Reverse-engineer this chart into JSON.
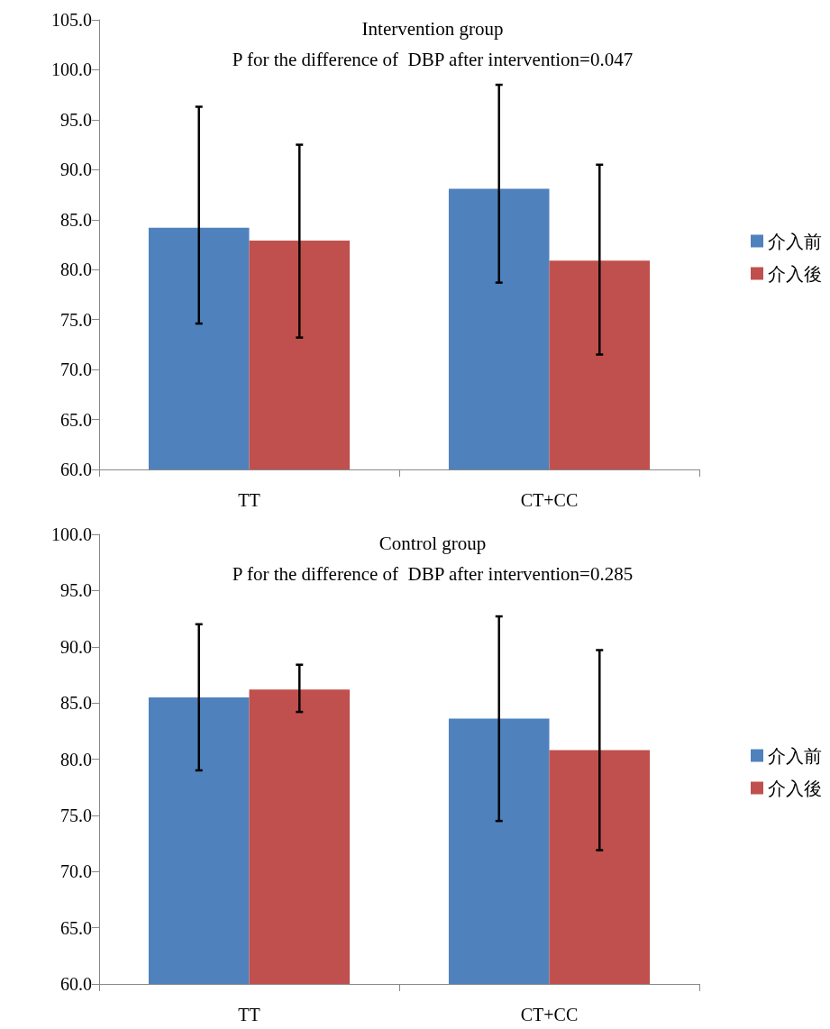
{
  "chart_data": [
    {
      "type": "bar",
      "title": "Intervention group",
      "subtitle": "P for the difference of  DBP after intervention=0.047",
      "categories": [
        "TT",
        "CT+CC"
      ],
      "series": [
        {
          "name": "介入前",
          "color": "#4f81bd",
          "values": [
            84.2,
            88.1
          ],
          "errors": [
            [
              74.6,
              96.3
            ],
            [
              78.7,
              98.5
            ]
          ]
        },
        {
          "name": "介入後",
          "color": "#c0504d",
          "values": [
            82.9,
            80.9
          ],
          "errors": [
            [
              73.2,
              92.5
            ],
            [
              71.5,
              90.5
            ]
          ]
        }
      ],
      "ylim": [
        60,
        105
      ],
      "yticks": [
        {
          "value": 60,
          "label": "60.0"
        },
        {
          "value": 65,
          "label": "65.0"
        },
        {
          "value": 70,
          "label": "70.0"
        },
        {
          "value": 75,
          "label": "75.0"
        },
        {
          "value": 80,
          "label": "80.0"
        },
        {
          "value": 85,
          "label": "85.0"
        },
        {
          "value": 90,
          "label": "90.0"
        },
        {
          "value": 95,
          "label": "95.0"
        },
        {
          "value": 100,
          "label": "100.0"
        },
        {
          "value": 105,
          "label": "105.0"
        }
      ],
      "grid": false,
      "legend": "right"
    },
    {
      "type": "bar",
      "title": "Control group",
      "subtitle": "P for the difference of  DBP after intervention=0.285",
      "categories": [
        "TT",
        "CT+CC"
      ],
      "series": [
        {
          "name": "介入前",
          "color": "#4f81bd",
          "values": [
            85.5,
            83.6
          ],
          "errors": [
            [
              79.0,
              92.0
            ],
            [
              74.5,
              92.7
            ]
          ]
        },
        {
          "name": "介入後",
          "color": "#c0504d",
          "values": [
            86.2,
            80.8
          ],
          "errors": [
            [
              84.2,
              88.4
            ],
            [
              71.9,
              89.7
            ]
          ]
        }
      ],
      "ylim": [
        60,
        100
      ],
      "yticks": [
        {
          "value": 60,
          "label": "60.0"
        },
        {
          "value": 65,
          "label": "65.0"
        },
        {
          "value": 70,
          "label": "70.0"
        },
        {
          "value": 75,
          "label": "75.0"
        },
        {
          "value": 80,
          "label": "80.0"
        },
        {
          "value": 85,
          "label": "85.0"
        },
        {
          "value": 90,
          "label": "90.0"
        },
        {
          "value": 95,
          "label": "95.0"
        },
        {
          "value": 100,
          "label": "100.0"
        }
      ],
      "grid": false,
      "legend": "right"
    }
  ]
}
